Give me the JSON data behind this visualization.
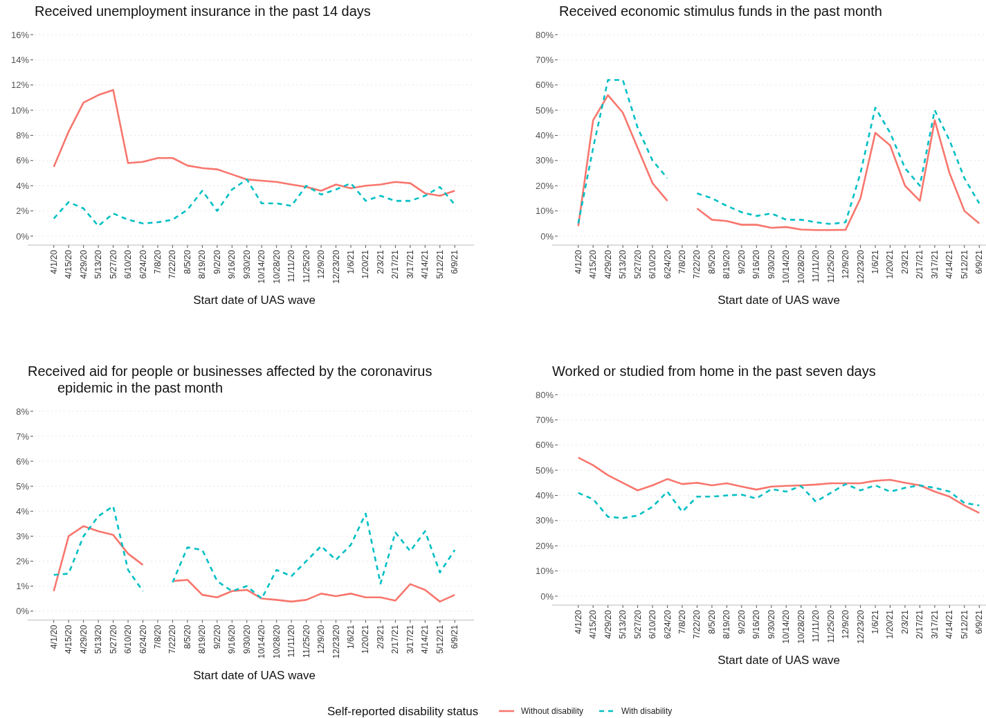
{
  "chart_data": [
    {
      "type": "line",
      "title": "Received unemployment insurance in the past 14 days",
      "xlabel": "Start date of UAS wave",
      "categories": [
        "4/1/20",
        "4/15/20",
        "4/29/20",
        "5/13/20",
        "5/27/20",
        "6/10/20",
        "6/24/20",
        "7/8/20",
        "7/22/20",
        "8/5/20",
        "8/19/20",
        "9/2/20",
        "9/16/20",
        "9/30/20",
        "10/14/20",
        "10/28/20",
        "11/11/20",
        "11/25/20",
        "12/9/20",
        "12/23/20",
        "1/6/21",
        "1/20/21",
        "2/3/21",
        "2/17/21",
        "3/17/21",
        "4/14/21",
        "5/12/21",
        "6/9/21"
      ],
      "ylim": [
        0,
        16
      ],
      "yticks": [
        {
          "value": 0,
          "label": "0%"
        },
        {
          "value": 2,
          "label": "2%"
        },
        {
          "value": 4,
          "label": "4%"
        },
        {
          "value": 6,
          "label": "6%"
        },
        {
          "value": 8,
          "label": "8%"
        },
        {
          "value": 10,
          "label": "10%"
        },
        {
          "value": 12,
          "label": "12%"
        },
        {
          "value": 14,
          "label": "14%"
        },
        {
          "value": 16,
          "label": "16%"
        }
      ],
      "grid": "y",
      "series": [
        {
          "color": "#f8766d",
          "line_style": "solid",
          "values": [
            5.5,
            8.3,
            10.6,
            11.2,
            11.6,
            5.8,
            5.9,
            6.2,
            6.2,
            5.6,
            5.4,
            5.3,
            4.9,
            4.5,
            4.4,
            4.3,
            4.1,
            3.9,
            3.6,
            4.1,
            3.8,
            4.0,
            4.1,
            4.3,
            4.2,
            3.4,
            3.2,
            3.6
          ]
        },
        {
          "color": "#00bfc4",
          "line_style": "dashed",
          "values": [
            1.4,
            2.7,
            2.2,
            0.8,
            1.8,
            1.3,
            1.0,
            1.1,
            1.3,
            2.1,
            3.6,
            2.0,
            3.7,
            4.5,
            2.6,
            2.6,
            2.4,
            4.0,
            3.3,
            3.7,
            4.2,
            2.8,
            3.2,
            2.8,
            2.8,
            3.2,
            3.9,
            2.5
          ]
        }
      ]
    },
    {
      "type": "line",
      "title": "Received economic stimulus funds in the past month",
      "xlabel": "Start date of UAS wave",
      "categories": [
        "4/1/20",
        "4/15/20",
        "4/29/20",
        "5/13/20",
        "5/27/20",
        "6/10/20",
        "6/24/20",
        "7/8/20",
        "7/22/20",
        "8/5/20",
        "8/19/20",
        "9/2/20",
        "9/16/20",
        "9/30/20",
        "10/14/20",
        "10/28/20",
        "11/11/20",
        "11/25/20",
        "12/9/20",
        "12/23/20",
        "1/6/21",
        "1/20/21",
        "2/3/21",
        "2/17/21",
        "3/17/21",
        "4/14/21",
        "5/12/21",
        "6/9/21"
      ],
      "ylim": [
        0,
        80
      ],
      "yticks": [
        {
          "value": 0,
          "label": "0%"
        },
        {
          "value": 10,
          "label": "10%"
        },
        {
          "value": 20,
          "label": "20%"
        },
        {
          "value": 30,
          "label": "30%"
        },
        {
          "value": 40,
          "label": "40%"
        },
        {
          "value": 50,
          "label": "50%"
        },
        {
          "value": 60,
          "label": "60%"
        },
        {
          "value": 70,
          "label": "70%"
        },
        {
          "value": 80,
          "label": "80%"
        }
      ],
      "grid": "y",
      "series": [
        {
          "color": "#f8766d",
          "line_style": "solid",
          "values": [
            4,
            46,
            56,
            49,
            35,
            21,
            14,
            null,
            11,
            6.5,
            6,
            4.5,
            4.5,
            3.3,
            3.6,
            2.6,
            2.4,
            2.4,
            2.5,
            15,
            41,
            36,
            20,
            14,
            46,
            25,
            10,
            5
          ]
        },
        {
          "color": "#00bfc4",
          "line_style": "dashed",
          "values": [
            5,
            35,
            62,
            62,
            43,
            30,
            23,
            null,
            17,
            15,
            12,
            9.5,
            8,
            9,
            6.5,
            6.5,
            5.5,
            4.8,
            5.5,
            25,
            51,
            41,
            27,
            20,
            50,
            38,
            23,
            13
          ]
        }
      ]
    },
    {
      "type": "line",
      "title": "Received aid for people or businesses affected by the coronavirus epidemic in the past month",
      "xlabel": "Start date of UAS wave",
      "categories": [
        "4/1/20",
        "4/15/20",
        "4/29/20",
        "5/13/20",
        "5/27/20",
        "6/10/20",
        "6/24/20",
        "7/8/20",
        "7/22/20",
        "8/5/20",
        "8/19/20",
        "9/2/20",
        "9/16/20",
        "9/30/20",
        "10/14/20",
        "10/28/20",
        "11/11/20",
        "11/25/20",
        "12/9/20",
        "12/23/20",
        "1/6/21",
        "1/20/21",
        "2/3/21",
        "2/17/21",
        "3/17/21",
        "4/14/21",
        "5/12/21",
        "6/9/21"
      ],
      "ylim": [
        0,
        8
      ],
      "yticks": [
        {
          "value": 0,
          "label": "0%"
        },
        {
          "value": 1,
          "label": "1%"
        },
        {
          "value": 2,
          "label": "2%"
        },
        {
          "value": 3,
          "label": "3%"
        },
        {
          "value": 4,
          "label": "4%"
        },
        {
          "value": 5,
          "label": "5%"
        },
        {
          "value": 6,
          "label": "6%"
        },
        {
          "value": 7,
          "label": "7%"
        },
        {
          "value": 8,
          "label": "8%"
        }
      ],
      "grid": "y",
      "series": [
        {
          "color": "#f8766d",
          "line_style": "solid",
          "values": [
            0.8,
            3.0,
            3.4,
            3.2,
            3.05,
            2.3,
            1.85,
            null,
            1.2,
            1.25,
            0.65,
            0.55,
            0.8,
            0.85,
            0.5,
            0.45,
            0.38,
            0.45,
            0.7,
            0.6,
            0.7,
            0.55,
            0.55,
            0.42,
            1.08,
            0.85,
            0.38,
            0.65
          ]
        },
        {
          "color": "#00bfc4",
          "line_style": "dashed",
          "values": [
            1.45,
            1.5,
            3.0,
            3.8,
            4.2,
            1.65,
            0.8,
            null,
            1.15,
            2.55,
            2.45,
            1.2,
            0.8,
            1.0,
            0.5,
            1.65,
            1.4,
            2.0,
            2.6,
            2.05,
            2.65,
            3.9,
            1.1,
            3.15,
            2.4,
            3.2,
            1.55,
            2.45
          ]
        }
      ]
    },
    {
      "type": "line",
      "title": "Worked or studied from home in the past seven days",
      "xlabel": "Start date of UAS wave",
      "categories": [
        "4/1/20",
        "4/15/20",
        "4/29/20",
        "5/13/20",
        "5/27/20",
        "6/10/20",
        "6/24/20",
        "7/8/20",
        "7/22/20",
        "8/5/20",
        "8/19/20",
        "9/2/20",
        "9/16/20",
        "9/30/20",
        "10/14/20",
        "10/28/20",
        "11/11/20",
        "11/25/20",
        "12/9/20",
        "12/23/20",
        "1/6/21",
        "1/20/21",
        "2/3/21",
        "2/17/21",
        "3/17/21",
        "4/14/21",
        "5/12/21",
        "6/9/21"
      ],
      "ylim": [
        0,
        80
      ],
      "yticks": [
        {
          "value": 0,
          "label": "0%"
        },
        {
          "value": 10,
          "label": "10%"
        },
        {
          "value": 20,
          "label": "20%"
        },
        {
          "value": 30,
          "label": "30%"
        },
        {
          "value": 40,
          "label": "40%"
        },
        {
          "value": 50,
          "label": "50%"
        },
        {
          "value": 60,
          "label": "60%"
        },
        {
          "value": 70,
          "label": "70%"
        },
        {
          "value": 80,
          "label": "80%"
        }
      ],
      "grid": "y",
      "legend": "bottom",
      "legend_title": "Self-reported disability status",
      "series": [
        {
          "name": "Without disability",
          "color": "#f8766d",
          "line_style": "solid",
          "values": [
            55,
            52,
            48,
            45,
            42,
            44,
            46.5,
            44.5,
            45,
            44,
            44.8,
            43.5,
            42.3,
            43.5,
            43.8,
            44,
            44.3,
            44.8,
            44.8,
            44.8,
            45.8,
            46.2,
            45,
            44,
            41.5,
            39.5,
            36,
            33
          ]
        },
        {
          "name": "With disability",
          "color": "#00bfc4",
          "line_style": "dashed",
          "values": [
            41,
            38.5,
            31.5,
            31,
            32,
            35.5,
            41.5,
            33.5,
            39.5,
            39.5,
            40,
            40.3,
            38.8,
            42.5,
            41.5,
            43.7,
            37.5,
            41,
            44.5,
            42,
            44,
            41.5,
            43,
            44,
            43,
            41.5,
            37,
            36
          ]
        }
      ]
    }
  ]
}
